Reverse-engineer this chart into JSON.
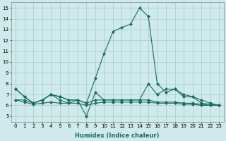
{
  "background_color": "#ceeaea",
  "grid_color": "#aac8c8",
  "line_color": "#1a6b5a",
  "xlabel": "Humidex (Indice chaleur)",
  "xlim": [
    -0.5,
    23.5
  ],
  "ylim": [
    4.5,
    15.5
  ],
  "xticks": [
    0,
    1,
    2,
    3,
    4,
    5,
    6,
    7,
    8,
    9,
    10,
    11,
    12,
    13,
    14,
    15,
    16,
    17,
    18,
    19,
    20,
    21,
    22,
    23
  ],
  "yticks": [
    5,
    6,
    7,
    8,
    9,
    10,
    11,
    12,
    13,
    14,
    15
  ],
  "lines": [
    {
      "x": [
        0,
        1,
        2,
        3,
        4,
        5,
        6,
        7,
        8,
        9,
        10,
        11,
        12,
        13,
        14,
        15,
        16,
        17,
        18,
        19,
        20,
        21,
        22,
        23
      ],
      "y": [
        7.5,
        6.8,
        6.2,
        6.5,
        7.0,
        6.8,
        6.5,
        6.5,
        6.2,
        8.5,
        10.8,
        12.8,
        13.2,
        13.5,
        15.0,
        14.2,
        8.0,
        7.2,
        7.5,
        7.0,
        6.8,
        6.5,
        6.2,
        6.0
      ]
    },
    {
      "x": [
        0,
        1,
        2,
        3,
        4,
        5,
        6,
        7,
        8,
        9,
        10,
        11,
        12,
        13,
        14,
        15,
        16,
        17,
        18,
        19,
        20,
        21,
        22,
        23
      ],
      "y": [
        7.5,
        6.8,
        6.2,
        6.5,
        7.0,
        6.5,
        6.2,
        6.5,
        5.0,
        7.2,
        6.5,
        6.5,
        6.5,
        6.5,
        6.5,
        8.0,
        7.0,
        7.5,
        7.5,
        6.8,
        6.8,
        6.2,
        6.1,
        6.0
      ]
    },
    {
      "x": [
        0,
        1,
        2,
        3,
        4,
        5,
        6,
        7,
        8,
        9,
        10,
        11,
        12,
        13,
        14,
        15,
        16,
        17,
        18,
        19,
        20,
        21,
        22,
        23
      ],
      "y": [
        6.5,
        6.5,
        6.2,
        6.5,
        7.0,
        6.8,
        6.5,
        6.5,
        6.2,
        6.5,
        6.5,
        6.5,
        6.5,
        6.5,
        6.5,
        6.5,
        6.3,
        6.3,
        6.3,
        6.2,
        6.2,
        6.1,
        6.0,
        6.0
      ]
    },
    {
      "x": [
        0,
        1,
        2,
        3,
        4,
        5,
        6,
        7,
        8,
        9,
        10,
        11,
        12,
        13,
        14,
        15,
        16,
        17,
        18,
        19,
        20,
        21,
        22,
        23
      ],
      "y": [
        6.5,
        6.3,
        6.1,
        6.2,
        6.3,
        6.2,
        6.2,
        6.2,
        6.0,
        6.2,
        6.3,
        6.3,
        6.3,
        6.3,
        6.3,
        6.3,
        6.2,
        6.2,
        6.2,
        6.1,
        6.1,
        6.0,
        6.0,
        6.0
      ]
    }
  ],
  "marker": "D",
  "markersize": 2.0,
  "linewidth": 0.8,
  "tick_fontsize": 5.0,
  "xlabel_fontsize": 6.0
}
